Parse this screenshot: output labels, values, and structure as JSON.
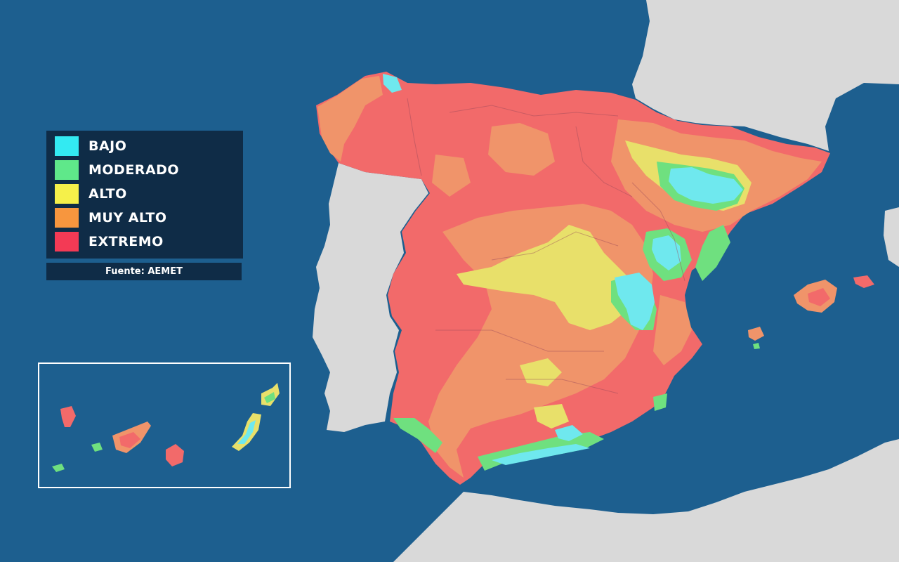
{
  "legend": {
    "items": [
      {
        "label": "BAJO",
        "color": "#33eaf2"
      },
      {
        "label": "MODERADO",
        "color": "#5fe88a"
      },
      {
        "label": "ALTO",
        "color": "#f5f04a"
      },
      {
        "label": "MUY ALTO",
        "color": "#f7963e"
      },
      {
        "label": "EXTREMO",
        "color": "#f33a55"
      }
    ]
  },
  "source": "Fuente: AEMET",
  "colors": {
    "sea": "#1d5f8f",
    "neighbor_land": "#d9d9d9",
    "map_extremo": "#f26a6a",
    "map_muy_alto": "#f0946a",
    "map_alto": "#e8e06a",
    "map_moderado": "#6fe07f",
    "map_bajo": "#6fe8ee"
  }
}
